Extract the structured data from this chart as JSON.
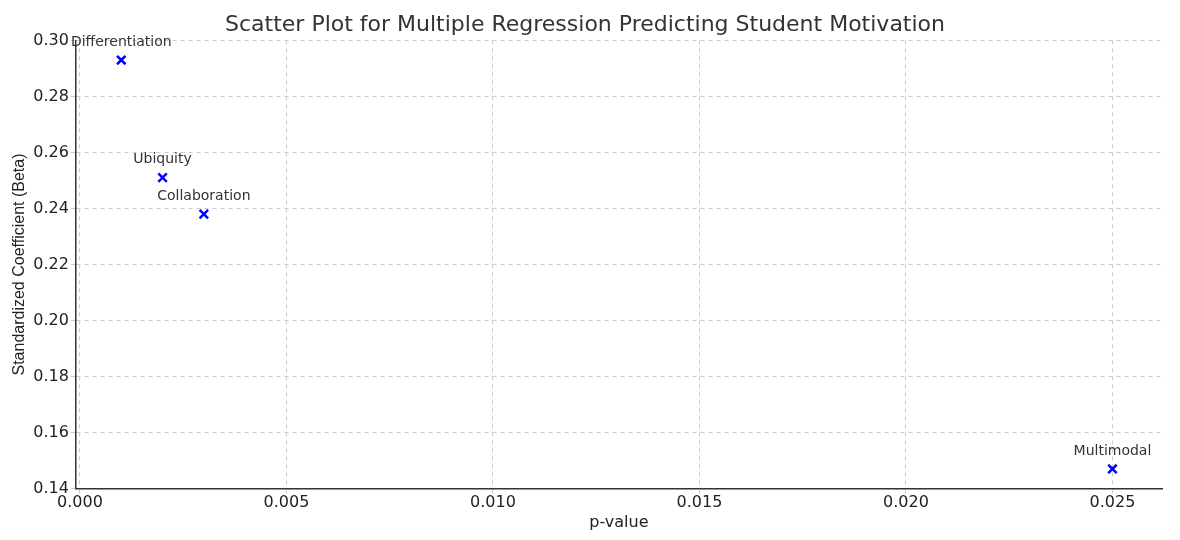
{
  "chart_data": {
    "type": "scatter",
    "title": "Scatter Plot for Multiple Regression Predicting Student Motivation",
    "xlabel": "p-value",
    "ylabel": "Standardized Coefficient (Beta)",
    "series": [
      {
        "color": "#0000ff",
        "x": [
          0.001,
          0.002,
          0.003,
          0.025
        ],
        "values": [
          0.293,
          0.251,
          0.238,
          0.147
        ]
      }
    ],
    "annotations": [
      {
        "text": "Differentiation",
        "x": 0.001,
        "y": 0.293
      },
      {
        "text": "Ubiquity",
        "x": 0.002,
        "y": 0.251
      },
      {
        "text": "Collaboration",
        "x": 0.003,
        "y": 0.238
      },
      {
        "text": "Multimodal",
        "x": 0.025,
        "y": 0.147
      }
    ],
    "xlim": [
      -0.0001,
      0.0262
    ],
    "xticks": [
      {
        "value": 0,
        "label": "0.000"
      },
      0.005,
      {
        "value": 0.01,
        "label": "0.010"
      },
      0.015,
      {
        "value": 0.02,
        "label": "0.020"
      },
      0.025
    ],
    "ylim": [
      0.14,
      0.3
    ],
    "yticks": [
      0.14,
      0.16,
      0.18,
      {
        "value": 0.2,
        "label": "0.20"
      },
      0.22,
      0.24,
      0.26,
      0.28,
      {
        "value": 0.3,
        "label": "0.30"
      }
    ],
    "grid": true,
    "legend": false,
    "marker": "cross"
  }
}
